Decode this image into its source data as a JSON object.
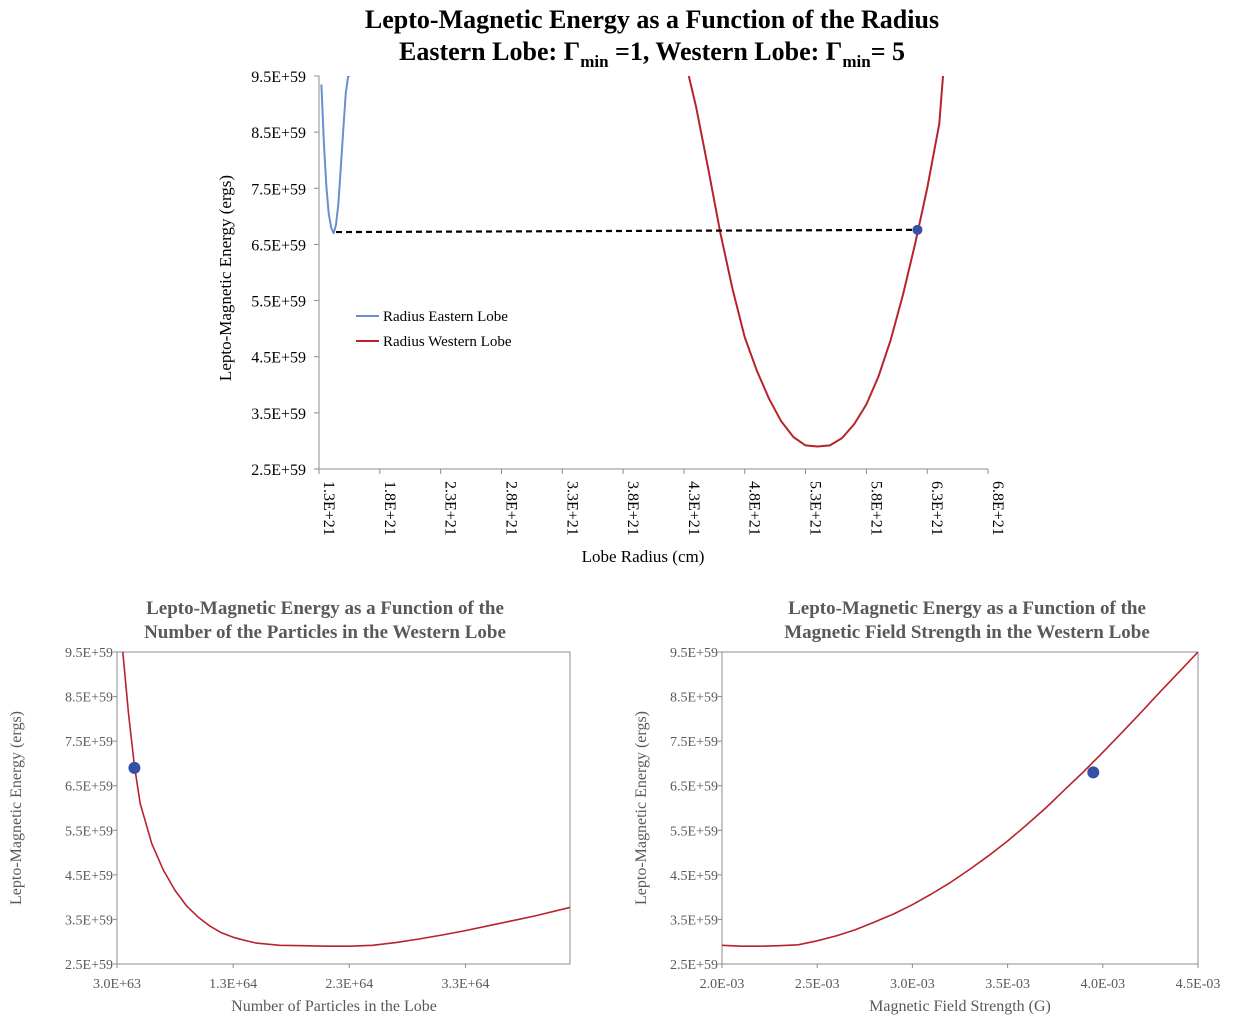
{
  "colors": {
    "eastern": "#6a8fcf",
    "western": "#b8232b",
    "marker": "#3451a3",
    "dashed": "#000000",
    "axis": "#8c8c8c",
    "bottom_title": "#595959",
    "bottom_text": "#595959"
  },
  "chart_data": [
    {
      "id": "main",
      "type": "line",
      "title_line1": "Lepto-Magnetic Energy as a Function of the Radius",
      "title_line2": {
        "prefix": "Eastern Lobe: Γ",
        "sub1": "min",
        "mid": " =1, Western Lobe: Γ",
        "sub2": "min",
        "suffix": "= 5"
      },
      "xlabel": "Lobe Radius (cm)",
      "ylabel": "Lepto-Magnetic Energy (ergs)",
      "xlim": [
        1.3e+21,
        6.8e+21
      ],
      "ylim": [
        2.5e+59,
        9.5e+59
      ],
      "grid": false,
      "legend_position": "left-middle",
      "x_ticks": [
        1.3e+21,
        1.8e+21,
        2.3e+21,
        2.8e+21,
        3.3e+21,
        3.8e+21,
        4.3e+21,
        4.8e+21,
        5.3e+21,
        5.8e+21,
        6.3e+21,
        6.8e+21
      ],
      "x_tick_labels": [
        "1.3E+21",
        "1.8E+21",
        "2.3E+21",
        "2.8E+21",
        "3.3E+21",
        "3.8E+21",
        "4.3E+21",
        "4.8E+21",
        "5.3E+21",
        "5.8E+21",
        "6.3E+21",
        "6.8E+21"
      ],
      "y_ticks": [
        2.5e+59,
        3.5e+59,
        4.5e+59,
        5.5e+59,
        6.5e+59,
        7.5e+59,
        8.5e+59,
        9.5e+59
      ],
      "y_tick_labels": [
        "2.5E+59",
        "3.5E+59",
        "4.5E+59",
        "5.5E+59",
        "6.5E+59",
        "7.5E+59",
        "8.5E+59",
        "9.5E+59"
      ],
      "series": [
        {
          "name": "Radius Eastern Lobe",
          "color_key": "eastern",
          "x": [
            1.32e+21,
            1.34e+21,
            1.36e+21,
            1.38e+21,
            1.4e+21,
            1.42e+21,
            1.44e+21,
            1.46e+21,
            1.48e+21,
            1.5e+21,
            1.52e+21,
            1.54e+21,
            1.555e+21
          ],
          "y": [
            9.35e+59,
            8.3e+59,
            7.55e+59,
            7.05e+59,
            6.8e+59,
            6.7e+59,
            6.85e+59,
            7.25e+59,
            7.9e+59,
            8.55e+59,
            9.2e+59,
            9.5e+59,
            9.5e+59
          ]
        },
        {
          "name": "Radius Western Lobe",
          "color_key": "western",
          "x": [
            4.34e+21,
            4.4e+21,
            4.5e+21,
            4.6e+21,
            4.7e+21,
            4.8e+21,
            4.9e+21,
            5e+21,
            5.1e+21,
            5.2e+21,
            5.3e+21,
            5.4e+21,
            5.5e+21,
            5.6e+21,
            5.7e+21,
            5.8e+21,
            5.9e+21,
            6e+21,
            6.1e+21,
            6.2e+21,
            6.3e+21,
            6.4e+21,
            6.43e+21
          ],
          "y": [
            9.5e+59,
            8.95e+59,
            7.85e+59,
            6.7e+59,
            5.7e+59,
            4.85e+59,
            4.25e+59,
            3.75e+59,
            3.35e+59,
            3.07e+59,
            2.92e+59,
            2.9e+59,
            2.92e+59,
            3.05e+59,
            3.3e+59,
            3.65e+59,
            4.15e+59,
            4.8e+59,
            5.6e+59,
            6.5e+59,
            7.5e+59,
            8.65e+59,
            9.5e+59
          ]
        }
      ],
      "dashed_line": {
        "x": [
          1.44e+21,
          6.22e+21
        ],
        "y": [
          6.72e+59,
          6.76e+59
        ]
      },
      "marker": {
        "x": 6.22e+21,
        "y": 6.76e+59
      }
    },
    {
      "id": "particles",
      "type": "line",
      "title_line1": "Lepto-Magnetic Energy as a Function of the",
      "title_line2": "Number of the Particles in the Western Lobe",
      "xlabel": "Number of Particles in the Lobe",
      "ylabel": "Lepto-Magnetic Energy (ergs)",
      "xlim": [
        3e+63,
        4.2e+64
      ],
      "ylim": [
        2.5e+59,
        9.5e+59
      ],
      "grid": false,
      "x_ticks": [
        3e+63,
        1.3e+64,
        2.3e+64,
        3.3e+64
      ],
      "x_tick_labels": [
        "3.0E+63",
        "1.3E+64",
        "2.3E+64",
        "3.3E+64"
      ],
      "y_ticks": [
        2.5e+59,
        3.5e+59,
        4.5e+59,
        5.5e+59,
        6.5e+59,
        7.5e+59,
        8.5e+59,
        9.5e+59
      ],
      "y_tick_labels": [
        "2.5E+59",
        "3.5E+59",
        "4.5E+59",
        "5.5E+59",
        "6.5E+59",
        "7.5E+59",
        "8.5E+59",
        "9.5E+59"
      ],
      "series": [
        {
          "color_key": "western",
          "x": [
            3.5e+63,
            4e+63,
            4.5e+63,
            5e+63,
            6e+63,
            7e+63,
            8e+63,
            9e+63,
            1e+64,
            1.1e+64,
            1.2e+64,
            1.3e+64,
            1.4e+64,
            1.5e+64,
            1.7e+64,
            1.9e+64,
            2.1e+64,
            2.3e+64,
            2.5e+64,
            2.7e+64,
            2.9e+64,
            3.1e+64,
            3.3e+64,
            3.5e+64,
            3.7e+64,
            3.9e+64,
            4.2e+64
          ],
          "y": [
            9.5e+59,
            8.1e+59,
            6.95e+59,
            6.1e+59,
            5.2e+59,
            4.6e+59,
            4.15e+59,
            3.8e+59,
            3.55e+59,
            3.35e+59,
            3.2e+59,
            3.1e+59,
            3.03e+59,
            2.97e+59,
            2.92e+59,
            2.91e+59,
            2.9e+59,
            2.9e+59,
            2.92e+59,
            2.98e+59,
            3.06e+59,
            3.15e+59,
            3.25e+59,
            3.36e+59,
            3.47e+59,
            3.58e+59,
            3.77e+59
          ]
        }
      ],
      "marker": {
        "x": 4.5e+63,
        "y": 6.9e+59
      }
    },
    {
      "id": "field",
      "type": "line",
      "title_line1": "Lepto-Magnetic Energy as a Function of the",
      "title_line2": "Magnetic Field Strength in the Western Lobe",
      "xlabel": "Magnetic Field Strength (G)",
      "ylabel": "Lepto-Magnetic Energy (ergs)",
      "xlim": [
        0.002,
        0.0045
      ],
      "ylim": [
        2.5e+59,
        9.5e+59
      ],
      "grid": false,
      "x_ticks": [
        0.002,
        0.0025,
        0.003,
        0.0035,
        0.004,
        0.0045
      ],
      "x_tick_labels": [
        "2.0E-03",
        "2.5E-03",
        "3.0E-03",
        "3.5E-03",
        "4.0E-03",
        "4.5E-03"
      ],
      "y_ticks": [
        2.5e+59,
        3.5e+59,
        4.5e+59,
        5.5e+59,
        6.5e+59,
        7.5e+59,
        8.5e+59,
        9.5e+59
      ],
      "y_tick_labels": [
        "2.5E+59",
        "3.5E+59",
        "4.5E+59",
        "5.5E+59",
        "6.5E+59",
        "7.5E+59",
        "8.5E+59",
        "9.5E+59"
      ],
      "series": [
        {
          "color_key": "western",
          "x": [
            0.002,
            0.0021,
            0.0022,
            0.0023,
            0.0024,
            0.0025,
            0.0026,
            0.0027,
            0.0028,
            0.0029,
            0.003,
            0.0031,
            0.0032,
            0.0033,
            0.0034,
            0.0035,
            0.0036,
            0.0037,
            0.0038,
            0.0039,
            0.004,
            0.0041,
            0.0042,
            0.0043,
            0.0044,
            0.0045
          ],
          "y": [
            2.92e+59,
            2.9e+59,
            2.9e+59,
            2.91e+59,
            2.93e+59,
            3.02e+59,
            3.13e+59,
            3.27e+59,
            3.44e+59,
            3.62e+59,
            3.83e+59,
            4.07e+59,
            4.33e+59,
            4.62e+59,
            4.93e+59,
            5.26e+59,
            5.62e+59,
            6e+59,
            6.41e+59,
            6.82e+59,
            7.25e+59,
            7.69e+59,
            8.14e+59,
            8.6e+59,
            9.05e+59,
            9.5e+59
          ]
        }
      ],
      "marker": {
        "x": 0.00395,
        "y": 6.8e+59
      }
    }
  ]
}
